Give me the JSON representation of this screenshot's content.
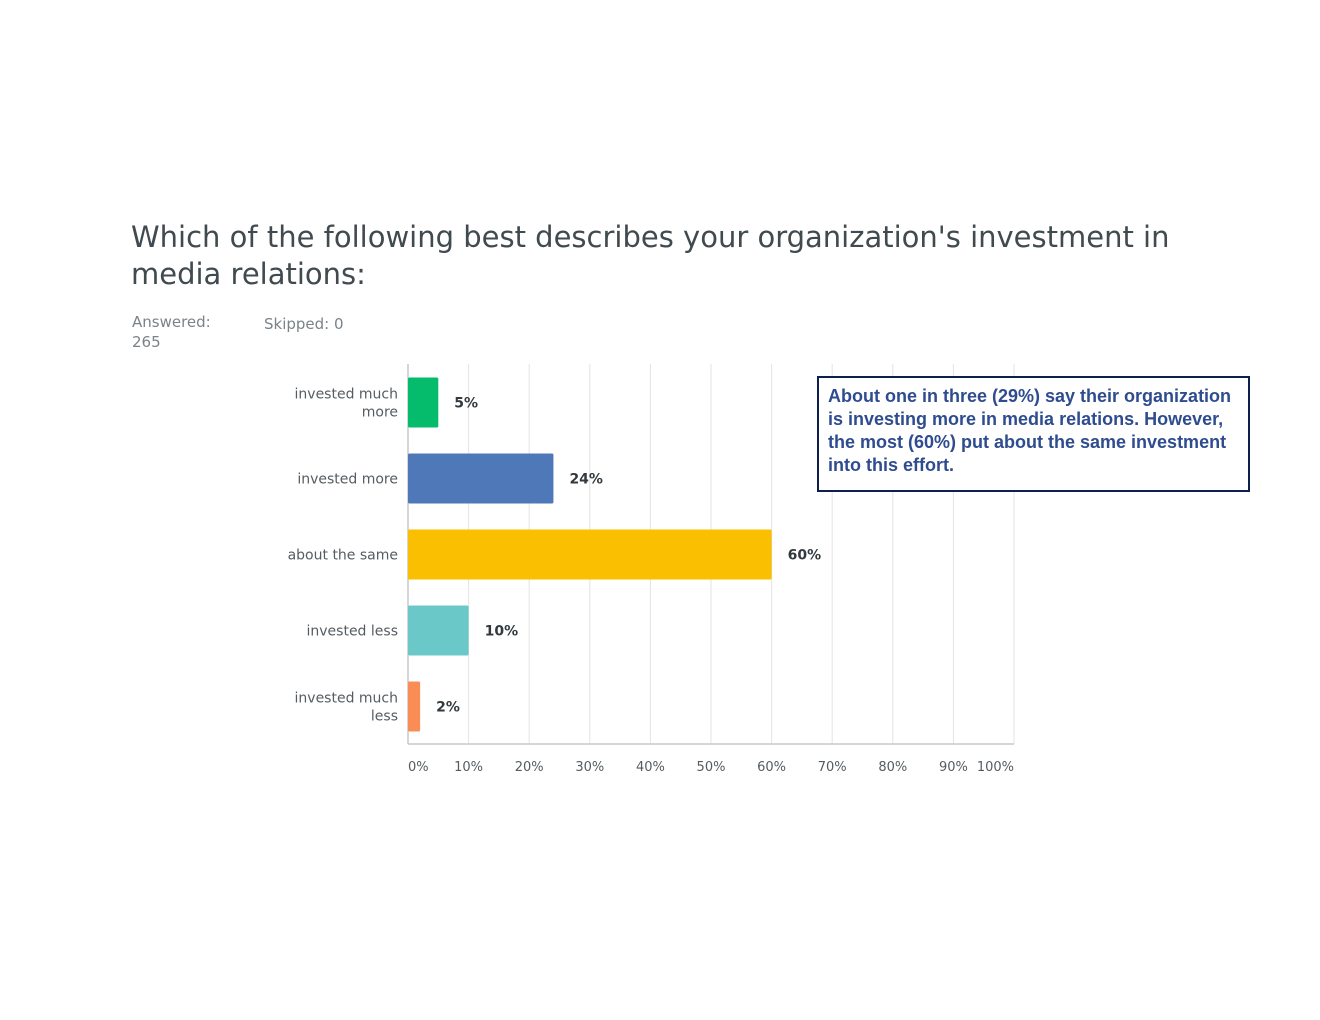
{
  "question": "Which of the following best describes your organization's investment in media relations:",
  "stats": {
    "answered": "Answered: 265",
    "skipped": "Skipped: 0"
  },
  "note": "About one in three (29%) say their organization is investing more in media relations. However, the most (60%) put about the same investment into this effort.",
  "chart_data": {
    "type": "bar",
    "orientation": "horizontal",
    "categories": [
      [
        "invested much",
        "more"
      ],
      [
        "invested more"
      ],
      [
        "about the same"
      ],
      [
        "invested less"
      ],
      [
        "invested much",
        "less"
      ]
    ],
    "values": [
      5,
      24,
      60,
      10,
      2
    ],
    "value_labels": [
      "5%",
      "24%",
      "60%",
      "10%",
      "2%"
    ],
    "colors": [
      "#05bb6c",
      "#4f78b8",
      "#f9bf00",
      "#6bc8c8",
      "#fa8c55"
    ],
    "x_ticks": [
      "0%",
      "10%",
      "20%",
      "30%",
      "40%",
      "50%",
      "60%",
      "70%",
      "80%",
      "90%",
      "100%"
    ],
    "xlim": [
      0,
      100
    ],
    "grid": true
  }
}
